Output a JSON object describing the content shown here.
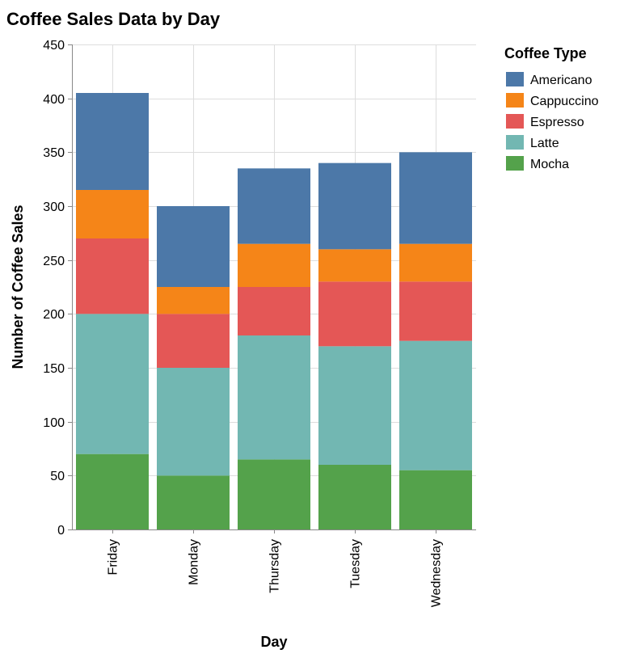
{
  "chart_data": {
    "type": "bar",
    "stacked": true,
    "title": "Coffee Sales Data by Day",
    "xlabel": "Day",
    "ylabel": "Number of Coffee Sales",
    "ylim": [
      0,
      450
    ],
    "yticks": [
      0,
      50,
      100,
      150,
      200,
      250,
      300,
      350,
      400,
      450
    ],
    "grid": true,
    "legend_title": "Coffee Type",
    "legend_position": "right",
    "categories": [
      "Friday",
      "Monday",
      "Thursday",
      "Tuesday",
      "Wednesday"
    ],
    "series": [
      {
        "name": "Americano",
        "color": "#4c78a8",
        "values": [
          90,
          75,
          70,
          80,
          85
        ]
      },
      {
        "name": "Cappuccino",
        "color": "#f58518",
        "values": [
          45,
          25,
          40,
          30,
          35
        ]
      },
      {
        "name": "Espresso",
        "color": "#e45756",
        "values": [
          70,
          50,
          45,
          60,
          55
        ]
      },
      {
        "name": "Latte",
        "color": "#72b7b2",
        "values": [
          130,
          100,
          115,
          110,
          120
        ]
      },
      {
        "name": "Mocha",
        "color": "#54a24b",
        "values": [
          70,
          50,
          65,
          60,
          55
        ]
      }
    ],
    "stack_order_bottom_to_top": [
      "Mocha",
      "Latte",
      "Espresso",
      "Cappuccino",
      "Americano"
    ]
  }
}
